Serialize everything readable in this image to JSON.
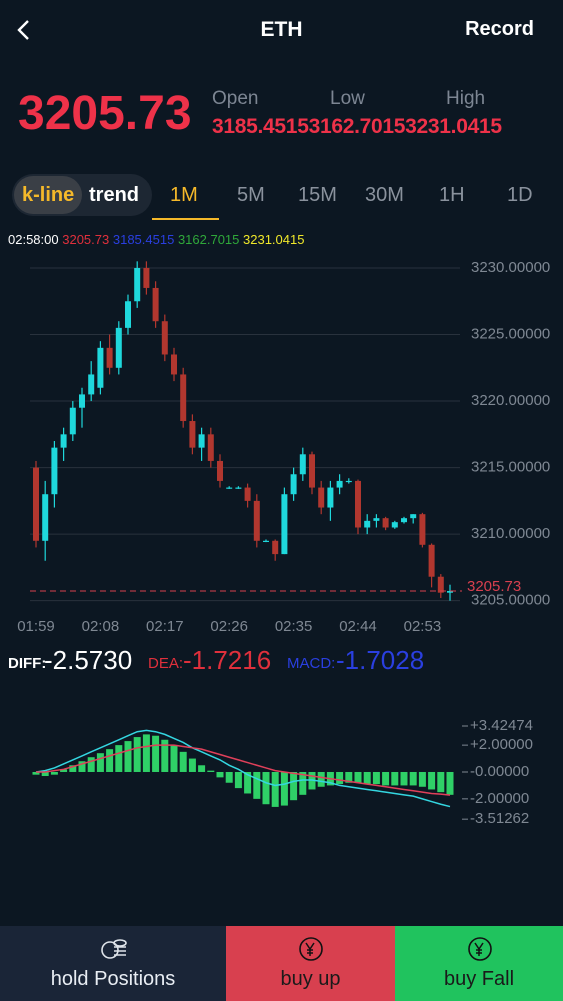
{
  "header": {
    "title": "ETH",
    "record": "Record"
  },
  "quote": {
    "price": "3205.73",
    "labels": [
      "Open",
      "Low",
      "High"
    ],
    "values": [
      "3185.4515",
      "3162.7015",
      "3231.0415"
    ]
  },
  "tabs": {
    "mode": [
      "k-line",
      "trend"
    ],
    "intervals": [
      "1M",
      "5M",
      "15M",
      "30M",
      "1H",
      "1D"
    ]
  },
  "info": {
    "time": "02:58:00",
    "values": [
      "3205.73",
      "3185.4515",
      "3162.7015",
      "3231.0415"
    ]
  },
  "chart_data": [
    {
      "type": "candlestick",
      "x": [
        "01:59",
        null,
        null,
        null,
        null,
        null,
        null,
        "02:08",
        null,
        null,
        null,
        null,
        null,
        null,
        "02:17",
        null,
        null,
        null,
        null,
        null,
        null,
        "02:26",
        null,
        null,
        null,
        null,
        null,
        null,
        "02:35",
        null,
        null,
        null,
        null,
        null,
        null,
        "02:44",
        null,
        null,
        null,
        null,
        null,
        null,
        "02:53",
        null,
        null,
        null
      ],
      "open": [
        3215,
        3209.5,
        3213,
        3216.5,
        3217.5,
        3219.5,
        3220.5,
        3221,
        3224,
        3222.5,
        3225.5,
        3227.5,
        3230,
        3228.5,
        3226,
        3223.5,
        3222,
        3218.5,
        3216.5,
        3217.5,
        3215.5,
        3213.5,
        3213.5,
        3213.5,
        3212.5,
        3209.5,
        3209.5,
        3208.5,
        3213,
        3214.5,
        3216,
        3213.5,
        3212,
        3213.5,
        3214,
        3214,
        3210.5,
        3211,
        3211.2,
        3210.5,
        3210.9,
        3211.2,
        3211.5,
        3209.2,
        3206.8,
        3205.6
      ],
      "high": [
        3215.5,
        3214,
        3217,
        3218,
        3220,
        3221,
        3223,
        3224.5,
        3225,
        3226,
        3228,
        3230.5,
        3230.5,
        3229,
        3226.5,
        3224,
        3222.5,
        3219,
        3218,
        3218,
        3216,
        3213.6,
        3213.6,
        3213.8,
        3213,
        3209.6,
        3209.6,
        3213.5,
        3215,
        3216.5,
        3216.2,
        3214,
        3214,
        3214.5,
        3214.2,
        3214.1,
        3211.5,
        3211.5,
        3211.3,
        3211,
        3211.3,
        3211.5,
        3211.6,
        3209.3,
        3207,
        3206.2
      ],
      "low": [
        3209,
        3208,
        3212,
        3215.5,
        3217,
        3218,
        3220,
        3220.5,
        3222,
        3222,
        3225,
        3227,
        3228,
        3225.5,
        3223,
        3221.5,
        3218,
        3216,
        3215.5,
        3215,
        3213.5,
        3213.4,
        3213.4,
        3212,
        3209,
        3209.4,
        3208,
        3208.5,
        3212.5,
        3214,
        3213,
        3211.5,
        3211,
        3213,
        3213.8,
        3210,
        3210,
        3210.5,
        3210.3,
        3210.4,
        3210.8,
        3210.8,
        3209,
        3206,
        3205.2,
        3205
      ],
      "close": [
        3209.5,
        3213,
        3216.5,
        3217.5,
        3219.5,
        3220.5,
        3222,
        3224,
        3222.5,
        3225.5,
        3227.5,
        3230,
        3228.5,
        3226,
        3223.5,
        3222,
        3218.5,
        3216.5,
        3217.5,
        3215.5,
        3214,
        3213.5,
        3213.5,
        3212.5,
        3209.5,
        3209.5,
        3208.5,
        3213,
        3214.5,
        3216,
        3213.5,
        3212,
        3213.5,
        3214,
        3214,
        3210.5,
        3211,
        3211.2,
        3210.5,
        3210.9,
        3211.2,
        3211.5,
        3209.2,
        3206.8,
        3205.6,
        3205.73
      ],
      "up_color": "#1fd8dc",
      "down_color": "#b2372f",
      "ylim": [
        3204.3,
        3230.75
      ],
      "yticks": [
        {
          "value": 3230,
          "label": "3230.00000"
        },
        {
          "value": 3225,
          "label": "3225.00000"
        },
        {
          "value": 3220,
          "label": "3220.00000"
        },
        {
          "value": 3215,
          "label": "3215.00000"
        },
        {
          "value": 3210,
          "label": "3210.00000"
        },
        {
          "value": 3205,
          "label": "3205.00000"
        }
      ],
      "last_price": 3205.73,
      "grid": true
    },
    {
      "type": "macd",
      "legend": [
        "DIFF:",
        "DEA:",
        "MACD:"
      ],
      "legend_values": [
        "-2.5730",
        "-1.7216",
        "-1.7028"
      ],
      "histogram": [
        -0.2,
        -0.3,
        -0.2,
        0.2,
        0.5,
        0.8,
        1.1,
        1.4,
        1.7,
        2.0,
        2.3,
        2.6,
        2.8,
        2.7,
        2.4,
        2.0,
        1.5,
        1.0,
        0.5,
        0.1,
        -0.4,
        -0.8,
        -1.2,
        -1.6,
        -2.0,
        -2.4,
        -2.6,
        -2.5,
        -2.1,
        -1.7,
        -1.3,
        -1.1,
        -1.0,
        -0.9,
        -0.8,
        -0.8,
        -0.9,
        -0.9,
        -1.0,
        -1.0,
        -1.0,
        -1.0,
        -1.1,
        -1.3,
        -1.5,
        -1.7
      ],
      "series": [
        {
          "name": "DIFF",
          "color": "#34d6e0",
          "values": [
            0,
            0.1,
            0.3,
            0.6,
            0.9,
            1.2,
            1.5,
            1.8,
            2.1,
            2.4,
            2.7,
            3.0,
            3.1,
            3.0,
            2.8,
            2.5,
            2.2,
            1.8,
            1.5,
            1.2,
            0.9,
            0.5,
            0.2,
            -0.2,
            -0.5,
            -0.8,
            -1.0,
            -0.9,
            -0.7,
            -0.6,
            -0.6,
            -0.7,
            -0.8,
            -1.0,
            -1.1,
            -1.2,
            -1.3,
            -1.4,
            -1.5,
            -1.6,
            -1.7,
            -1.8,
            -2.0,
            -2.2,
            -2.4,
            -2.573
          ]
        },
        {
          "name": "DEA",
          "color": "#e0405a",
          "values": [
            0,
            0,
            0.1,
            0.2,
            0.4,
            0.6,
            0.8,
            1.0,
            1.2,
            1.4,
            1.6,
            1.8,
            1.9,
            2.0,
            2.0,
            2.0,
            1.9,
            1.8,
            1.7,
            1.5,
            1.3,
            1.1,
            0.9,
            0.7,
            0.5,
            0.3,
            0.1,
            0,
            -0.1,
            -0.2,
            -0.3,
            -0.4,
            -0.5,
            -0.6,
            -0.7,
            -0.8,
            -0.9,
            -1.0,
            -1.1,
            -1.2,
            -1.3,
            -1.4,
            -1.5,
            -1.6,
            -1.65,
            -1.7216
          ]
        }
      ],
      "pos_color": "#2fd067",
      "neg_color": "#2fd067",
      "ylim": [
        -4.17,
        4.02
      ],
      "yticks": [
        {
          "value": 3.42474,
          "label": "+3.42474"
        },
        {
          "value": 2,
          "label": "+2.00000"
        },
        {
          "value": 0,
          "label": "-0.00000"
        },
        {
          "value": -2,
          "label": "-2.00000"
        },
        {
          "value": -3.51262,
          "label": "-3.51262"
        }
      ]
    }
  ],
  "buttons": [
    "hold Positions",
    "buy up",
    "buy Fall"
  ]
}
